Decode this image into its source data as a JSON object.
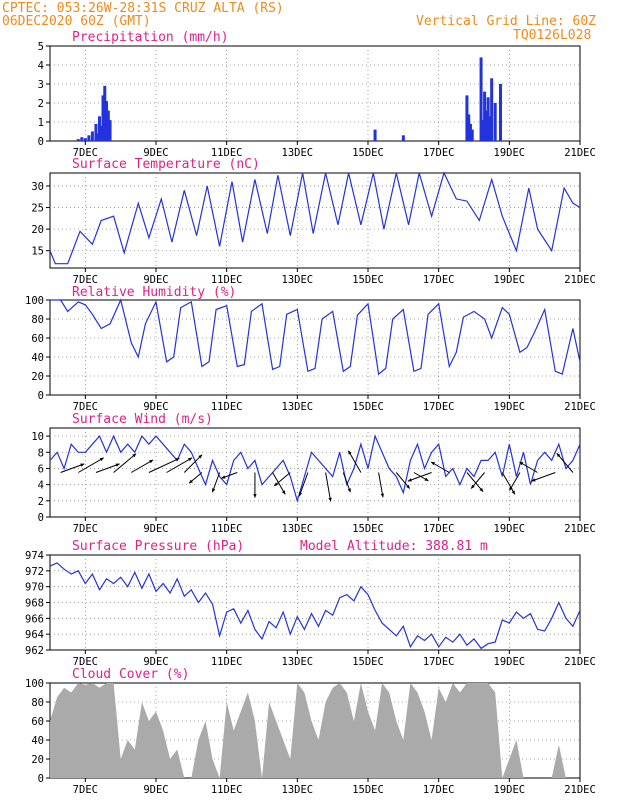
{
  "header": {
    "line1": "CPTEC:  053:26W-28:31S  CRUZ ALTA (RS)",
    "line2": "06DEC2020 60Z (GMT)",
    "right1": "Vertical Grid Line: 60Z",
    "right2": "TQ0126L028"
  },
  "colors": {
    "line": "#2233dd",
    "cloud": "#aaaaaa",
    "header": "#f08a1a",
    "title": "#e0208a"
  },
  "x_axis": {
    "min_day": 6,
    "max_day": 21,
    "tick_days": [
      7,
      9,
      11,
      13,
      15,
      17,
      19,
      21
    ],
    "tick_labels": [
      "7DEC",
      "9DEC",
      "11DEC",
      "13DEC",
      "15DEC",
      "17DEC",
      "19DEC",
      "21DEC"
    ]
  },
  "panels": {
    "precip": {
      "title": "Precipitation (mm/h)",
      "yticks": [
        "0",
        "1",
        "2",
        "3",
        "4",
        "5"
      ]
    },
    "temp": {
      "title": "Surface Temperature (nC)",
      "yticks": [
        "15",
        "20",
        "25",
        "30"
      ]
    },
    "rh": {
      "title": "Relative Humidity (%)",
      "yticks": [
        "0",
        "20",
        "40",
        "60",
        "80",
        "100"
      ]
    },
    "wind": {
      "title": "Surface Wind (m/s)",
      "yticks": [
        "0",
        "2",
        "4",
        "6",
        "8",
        "10"
      ]
    },
    "pres": {
      "title": "Surface Pressure (hPa)",
      "extra": "Model Altitude: 388.81 m",
      "yticks": [
        "962",
        "964",
        "966",
        "968",
        "970",
        "972",
        "974"
      ]
    },
    "cloud": {
      "title": "Cloud Cover (%)",
      "yticks": [
        "0",
        "20",
        "40",
        "60",
        "80",
        "100"
      ]
    }
  },
  "chart_data": [
    {
      "type": "bar",
      "title": "Precipitation (mm/h)",
      "ylim": [
        0,
        5
      ],
      "grid": true,
      "x": [
        6.8,
        6.9,
        7.0,
        7.1,
        7.2,
        7.3,
        7.35,
        7.4,
        7.45,
        7.5,
        7.55,
        7.6,
        7.65,
        7.7,
        15.2,
        16.0,
        17.8,
        17.85,
        17.9,
        17.95,
        18.2,
        18.25,
        18.3,
        18.35,
        18.4,
        18.45,
        18.5,
        18.6,
        18.75
      ],
      "values": [
        0.1,
        0.2,
        0.15,
        0.3,
        0.5,
        0.9,
        0.4,
        1.3,
        0.8,
        2.4,
        2.9,
        2.1,
        1.6,
        1.1,
        0.6,
        0.3,
        2.4,
        1.4,
        0.9,
        0.6,
        4.4,
        1.1,
        2.6,
        1.6,
        2.3,
        1.3,
        3.3,
        2.0,
        3.0
      ]
    },
    {
      "type": "line",
      "title": "Surface Temperature (nC)",
      "ylim": [
        11,
        33
      ],
      "grid": true,
      "x": [
        6.0,
        6.15,
        6.5,
        6.85,
        7.2,
        7.45,
        7.8,
        8.1,
        8.5,
        8.8,
        9.15,
        9.45,
        9.8,
        10.15,
        10.45,
        10.8,
        11.15,
        11.45,
        11.8,
        12.15,
        12.45,
        12.8,
        13.15,
        13.45,
        13.8,
        14.15,
        14.45,
        14.8,
        15.15,
        15.45,
        15.8,
        16.15,
        16.45,
        16.8,
        17.15,
        17.5,
        17.8,
        18.15,
        18.5,
        18.8,
        19.2,
        19.55,
        19.8,
        20.2,
        20.55,
        20.8,
        21.0
      ],
      "values": [
        15.0,
        12.0,
        12.0,
        19.5,
        16.5,
        22.0,
        23.0,
        14.5,
        26.0,
        18.0,
        27.0,
        17.0,
        29.0,
        18.5,
        30.0,
        16.0,
        31.0,
        17.0,
        31.5,
        19.0,
        32.5,
        18.5,
        33.0,
        19.0,
        33.0,
        21.0,
        33.0,
        21.0,
        33.0,
        20.0,
        33.0,
        21.0,
        33.0,
        23.0,
        33.0,
        27.0,
        26.5,
        22.0,
        31.5,
        23.0,
        15.0,
        29.5,
        20.0,
        15.0,
        29.5,
        26.0,
        25.0
      ]
    },
    {
      "type": "line",
      "title": "Relative Humidity (%)",
      "ylim": [
        0,
        100
      ],
      "grid": true,
      "x": [
        6.0,
        6.3,
        6.5,
        6.8,
        7.0,
        7.2,
        7.45,
        7.7,
        8.0,
        8.3,
        8.5,
        8.7,
        9.0,
        9.3,
        9.5,
        9.7,
        10.0,
        10.3,
        10.5,
        10.7,
        11.0,
        11.3,
        11.5,
        11.7,
        12.0,
        12.3,
        12.5,
        12.7,
        13.0,
        13.3,
        13.5,
        13.7,
        14.0,
        14.3,
        14.5,
        14.7,
        15.0,
        15.3,
        15.5,
        15.7,
        16.0,
        16.3,
        16.5,
        16.7,
        17.0,
        17.3,
        17.5,
        17.7,
        18.0,
        18.3,
        18.5,
        18.8,
        19.0,
        19.3,
        19.5,
        19.7,
        20.0,
        20.3,
        20.5,
        20.8,
        21.0
      ],
      "values": [
        100,
        100,
        88,
        98,
        95,
        85,
        70,
        75,
        100,
        55,
        40,
        75,
        98,
        35,
        40,
        92,
        98,
        30,
        35,
        90,
        94,
        30,
        32,
        88,
        96,
        27,
        30,
        85,
        90,
        25,
        28,
        80,
        88,
        25,
        30,
        84,
        96,
        22,
        28,
        80,
        90,
        25,
        28,
        85,
        96,
        30,
        45,
        82,
        88,
        80,
        60,
        92,
        85,
        45,
        50,
        65,
        90,
        25,
        22,
        70,
        35
      ]
    },
    {
      "type": "line",
      "title": "Surface Wind (m/s)",
      "ylim": [
        0,
        11
      ],
      "grid": true,
      "x": [
        6.0,
        6.2,
        6.4,
        6.6,
        6.8,
        7.0,
        7.2,
        7.4,
        7.6,
        7.8,
        8.0,
        8.2,
        8.4,
        8.6,
        8.8,
        9.0,
        9.2,
        9.4,
        9.6,
        9.8,
        10.0,
        10.2,
        10.4,
        10.6,
        10.8,
        11.0,
        11.2,
        11.4,
        11.6,
        11.8,
        12.0,
        12.2,
        12.4,
        12.6,
        12.8,
        13.0,
        13.2,
        13.4,
        13.6,
        13.8,
        14.0,
        14.2,
        14.4,
        14.6,
        14.8,
        15.0,
        15.2,
        15.4,
        15.6,
        15.8,
        16.0,
        16.2,
        16.4,
        16.6,
        16.8,
        17.0,
        17.2,
        17.4,
        17.6,
        17.8,
        18.0,
        18.2,
        18.4,
        18.6,
        18.8,
        19.0,
        19.2,
        19.4,
        19.6,
        19.8,
        20.0,
        20.2,
        20.4,
        20.6,
        20.8,
        21.0
      ],
      "values": [
        7,
        8,
        6,
        9,
        8,
        8,
        9,
        10,
        8,
        10,
        8,
        9,
        8,
        10,
        9,
        10,
        9,
        8,
        7,
        9,
        8,
        6,
        4,
        7,
        5,
        4,
        7,
        8,
        6,
        7,
        4,
        5,
        6,
        7,
        5,
        2,
        5,
        8,
        7,
        6,
        5,
        8,
        4,
        6,
        9,
        6,
        10,
        8,
        6,
        5,
        3,
        7,
        9,
        6,
        8,
        9,
        5,
        6,
        4,
        6,
        5,
        7,
        7,
        8,
        5,
        9,
        5,
        8,
        4,
        7,
        8,
        7,
        9,
        6,
        7,
        9
      ],
      "barb_x": [
        6.3,
        6.8,
        7.3,
        7.8,
        8.3,
        8.8,
        9.3,
        9.8,
        10.3,
        10.8,
        11.3,
        11.8,
        12.3,
        12.8,
        13.3,
        13.8,
        14.3,
        14.8,
        15.3,
        15.8,
        16.3,
        16.8,
        17.3,
        17.8,
        18.3,
        18.8,
        19.3,
        19.8,
        20.3,
        20.8
      ],
      "barb_dir_deg": [
        20,
        30,
        20,
        40,
        30,
        25,
        30,
        45,
        220,
        250,
        200,
        270,
        300,
        220,
        250,
        280,
        290,
        120,
        280,
        310,
        330,
        200,
        150,
        310,
        230,
        300,
        240,
        150,
        200,
        130
      ],
      "barb_speed": [
        6,
        7,
        6,
        7,
        6,
        8,
        7,
        6,
        4,
        5,
        4,
        6,
        6,
        5,
        6,
        7,
        5,
        6,
        6,
        5,
        4,
        6,
        5,
        6,
        5,
        6,
        5,
        5,
        6,
        6
      ]
    },
    {
      "type": "line",
      "title": "Surface Pressure (hPa)",
      "ylim": [
        962,
        974
      ],
      "grid": true,
      "x": [
        6.0,
        6.2,
        6.4,
        6.6,
        6.8,
        7.0,
        7.2,
        7.4,
        7.6,
        7.8,
        8.0,
        8.2,
        8.4,
        8.6,
        8.8,
        9.0,
        9.2,
        9.4,
        9.6,
        9.8,
        10.0,
        10.2,
        10.4,
        10.6,
        10.8,
        11.0,
        11.2,
        11.4,
        11.6,
        11.8,
        12.0,
        12.2,
        12.4,
        12.6,
        12.8,
        13.0,
        13.2,
        13.4,
        13.6,
        13.8,
        14.0,
        14.2,
        14.4,
        14.6,
        14.8,
        15.0,
        15.2,
        15.4,
        15.6,
        15.8,
        16.0,
        16.2,
        16.4,
        16.6,
        16.8,
        17.0,
        17.2,
        17.4,
        17.6,
        17.8,
        18.0,
        18.2,
        18.4,
        18.6,
        18.8,
        19.0,
        19.2,
        19.4,
        19.6,
        19.8,
        20.0,
        20.2,
        20.4,
        20.6,
        20.8,
        21.0
      ],
      "values": [
        972.6,
        973.0,
        972.2,
        971.6,
        972.0,
        970.4,
        971.6,
        969.6,
        971.0,
        970.4,
        971.2,
        970.0,
        971.8,
        969.8,
        971.6,
        969.4,
        970.4,
        969.2,
        971.0,
        968.8,
        969.6,
        968.0,
        969.2,
        967.8,
        963.8,
        966.8,
        967.2,
        965.4,
        967.0,
        964.6,
        963.4,
        965.6,
        964.8,
        966.8,
        964.0,
        966.2,
        964.6,
        966.6,
        965.0,
        967.0,
        966.4,
        968.6,
        969.0,
        968.2,
        970.0,
        969.0,
        967.0,
        965.4,
        964.6,
        963.8,
        965.0,
        962.4,
        963.8,
        963.2,
        964.0,
        962.4,
        963.6,
        963.0,
        964.0,
        962.6,
        963.4,
        962.2,
        962.8,
        963.0,
        965.8,
        965.4,
        966.8,
        966.0,
        966.6,
        964.6,
        964.4,
        966.0,
        968.0,
        966.0,
        965.0,
        967.0
      ]
    },
    {
      "type": "area",
      "title": "Cloud Cover (%)",
      "ylim": [
        0,
        100
      ],
      "grid": true,
      "x": [
        6.0,
        6.2,
        6.4,
        6.6,
        6.8,
        7.0,
        7.2,
        7.4,
        7.6,
        7.8,
        8.0,
        8.2,
        8.4,
        8.6,
        8.8,
        9.0,
        9.2,
        9.4,
        9.6,
        9.8,
        10.0,
        10.2,
        10.4,
        10.6,
        10.8,
        11.0,
        11.2,
        11.4,
        11.6,
        11.8,
        12.0,
        12.2,
        12.4,
        12.6,
        12.8,
        13.0,
        13.2,
        13.4,
        13.6,
        13.8,
        14.0,
        14.2,
        14.4,
        14.6,
        14.8,
        15.0,
        15.2,
        15.4,
        15.6,
        15.8,
        16.0,
        16.2,
        16.4,
        16.6,
        16.8,
        17.0,
        17.2,
        17.4,
        17.6,
        17.8,
        18.0,
        18.2,
        18.4,
        18.6,
        18.8,
        19.0,
        19.2,
        19.4,
        19.6,
        19.8,
        20.0,
        20.2,
        20.4,
        20.6,
        20.8,
        21.0
      ],
      "values": [
        60,
        85,
        95,
        90,
        100,
        98,
        100,
        95,
        100,
        100,
        20,
        40,
        30,
        80,
        60,
        70,
        50,
        20,
        30,
        0,
        0,
        40,
        60,
        20,
        0,
        80,
        50,
        70,
        90,
        60,
        0,
        80,
        60,
        40,
        20,
        100,
        90,
        60,
        40,
        80,
        95,
        100,
        90,
        60,
        100,
        70,
        50,
        100,
        90,
        60,
        40,
        100,
        90,
        70,
        40,
        95,
        80,
        100,
        90,
        100,
        100,
        100,
        100,
        90,
        0,
        20,
        40,
        0,
        0,
        0,
        0,
        0,
        35,
        0,
        0,
        0
      ]
    }
  ]
}
